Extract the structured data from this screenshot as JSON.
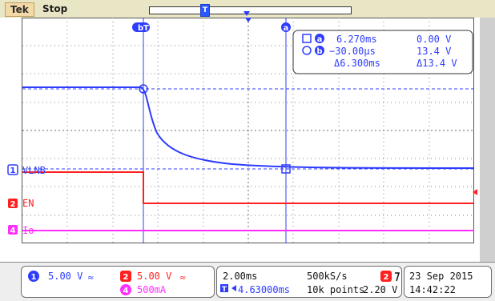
{
  "topbar": {
    "brand": "Tek",
    "run_state": "Stop",
    "record_marker": "T"
  },
  "markers": {
    "cursor_b_label": "b",
    "trigger_marker_label": "T",
    "cursor_a_label": "a"
  },
  "readout": {
    "row1": {
      "cursor": "a",
      "time": "6.270ms",
      "voltage": "0.00 V"
    },
    "row2": {
      "cursor": "b",
      "time": "−30.00μs",
      "voltage": "13.4 V"
    },
    "row3": {
      "delta_time": "Δ6.300ms",
      "delta_voltage": "Δ13.4 V"
    }
  },
  "channels": {
    "ch1": {
      "number": "1",
      "name": "VLNB",
      "color": "#2d3cff"
    },
    "ch2": {
      "number": "2",
      "name": "EN",
      "color": "#ff2020"
    },
    "ch4": {
      "number": "4",
      "name": "Io",
      "color": "#ff30ff"
    }
  },
  "bottom_panel": {
    "ch1_badge": "1",
    "ch1_scale": "5.00 V",
    "ch1_bw_icon": "bandwidth-limit-icon",
    "ch2_badge": "2",
    "ch2_scale": "5.00 V",
    "ch2_bw_icon": "bandwidth-limit-icon",
    "ch4_badge": "4",
    "ch4_scale": "500mA",
    "timebase": "2.00ms",
    "sample_rate": "500kS/s",
    "trigger_source_badge": "2",
    "trigger_slope_icon": "falling-edge-icon",
    "trigger_level": "2.20 V",
    "horizontal_position": "4.63000ms",
    "record_length": "10k points",
    "date": "23 Sep  2015",
    "time": "14:42:22"
  },
  "colors": {
    "ch1": "#2d3cff",
    "ch2": "#ff2020",
    "ch4": "#ff30ff",
    "grid": "#7c7c7c"
  }
}
